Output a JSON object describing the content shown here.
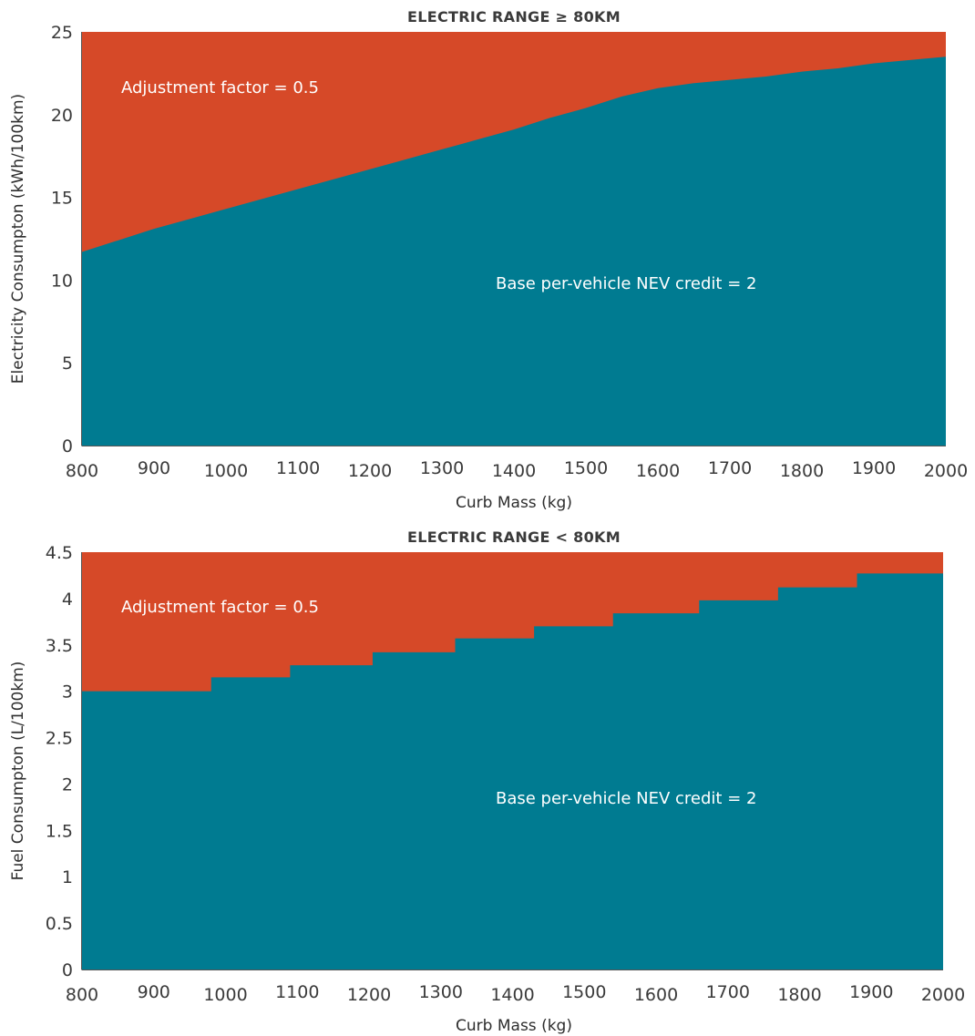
{
  "chart_data": [
    {
      "type": "area",
      "title": "ELECTRIC RANGE ≥ 80KM",
      "xlabel": "Curb Mass (kg)",
      "ylabel": "Electricity Consumpton (kWh/100km)",
      "xlim": [
        800,
        2000
      ],
      "ylim": [
        0,
        25
      ],
      "xticks": [
        "800",
        "900",
        "1000",
        "1100",
        "1200",
        "1300",
        "1400",
        "1500",
        "1600",
        "1700",
        "1800",
        "1900",
        "2000"
      ],
      "yticks": [
        "0",
        "5",
        "10",
        "15",
        "20",
        "25"
      ],
      "x": [
        800,
        850,
        900,
        950,
        1000,
        1050,
        1100,
        1150,
        1200,
        1250,
        1300,
        1350,
        1400,
        1450,
        1500,
        1550,
        1600,
        1650,
        1700,
        1750,
        1800,
        1850,
        1900,
        1950,
        2000
      ],
      "series": [
        {
          "name": "Base per-vehicle NEV credit = 2",
          "color": "#007B91",
          "values": [
            11.7,
            12.4,
            13.1,
            13.7,
            14.3,
            14.9,
            15.5,
            16.1,
            16.7,
            17.3,
            17.9,
            18.5,
            19.1,
            19.8,
            20.4,
            21.1,
            21.6,
            21.9,
            22.1,
            22.3,
            22.6,
            22.8,
            23.1,
            23.3,
            23.5
          ]
        },
        {
          "name": "Adjustment factor = 0.5",
          "color": "#D64928",
          "values": [
            25,
            25,
            25,
            25,
            25,
            25,
            25,
            25,
            25,
            25,
            25,
            25,
            25,
            25,
            25,
            25,
            25,
            25,
            25,
            25,
            25,
            25,
            25,
            25,
            25
          ]
        }
      ],
      "annotations": [
        "Adjustment factor = 0.5",
        "Base per-vehicle NEV credit = 2"
      ],
      "grid": false
    },
    {
      "type": "area",
      "title": "ELECTRIC RANGE < 80KM",
      "xlabel": "Curb Mass (kg)",
      "ylabel": "Fuel Consumpton (L/100km)",
      "xlim": [
        800,
        2000
      ],
      "ylim": [
        0,
        4.5
      ],
      "xticks": [
        "800",
        "900",
        "1000",
        "1100",
        "1200",
        "1300",
        "1400",
        "1500",
        "1600",
        "1700",
        "1800",
        "1900",
        "2000"
      ],
      "yticks": [
        "0",
        "0.5",
        "1",
        "1.5",
        "2",
        "2.5",
        "3",
        "3.5",
        "4",
        "4.5"
      ],
      "step": true,
      "x": [
        800,
        980,
        1090,
        1205,
        1320,
        1430,
        1540,
        1660,
        1770,
        1880,
        2000
      ],
      "series": [
        {
          "name": "Base per-vehicle NEV credit = 2",
          "color": "#007B91",
          "values": [
            3.0,
            3.15,
            3.28,
            3.42,
            3.57,
            3.7,
            3.84,
            3.98,
            4.12,
            4.27,
            4.27
          ]
        },
        {
          "name": "Adjustment factor = 0.5",
          "color": "#D64928",
          "values": [
            4.5,
            4.5,
            4.5,
            4.5,
            4.5,
            4.5,
            4.5,
            4.5,
            4.5,
            4.5,
            4.5
          ]
        }
      ],
      "annotations": [
        "Adjustment factor = 0.5",
        "Base per-vehicle NEV credit = 2"
      ],
      "grid": false
    }
  ]
}
